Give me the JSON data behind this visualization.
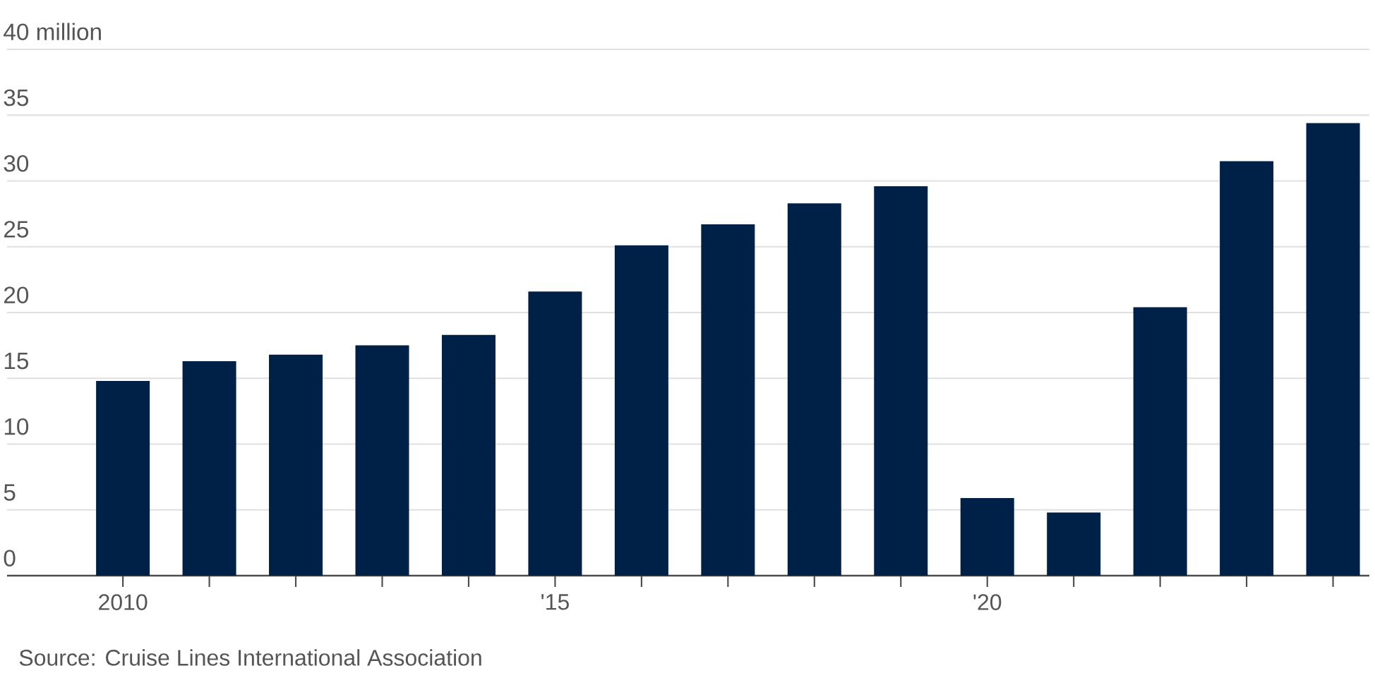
{
  "chart_data": {
    "type": "bar",
    "categories": [
      "2010",
      null,
      null,
      null,
      null,
      "'15",
      null,
      null,
      null,
      null,
      "'20",
      null,
      null,
      null,
      null
    ],
    "values": [
      14.8,
      16.3,
      16.8,
      17.5,
      18.3,
      21.6,
      25.1,
      26.7,
      28.3,
      29.6,
      5.9,
      4.8,
      20.4,
      31.5,
      34.4
    ],
    "color": "#002147",
    "ylim": [
      0,
      40
    ],
    "yticks": [
      0,
      5,
      10,
      15,
      20,
      25,
      30,
      35,
      {
        "value": 40,
        "label": "40 million"
      }
    ],
    "grid": "y",
    "annotations": [
      "Source: Cruise Lines International Association"
    ]
  }
}
